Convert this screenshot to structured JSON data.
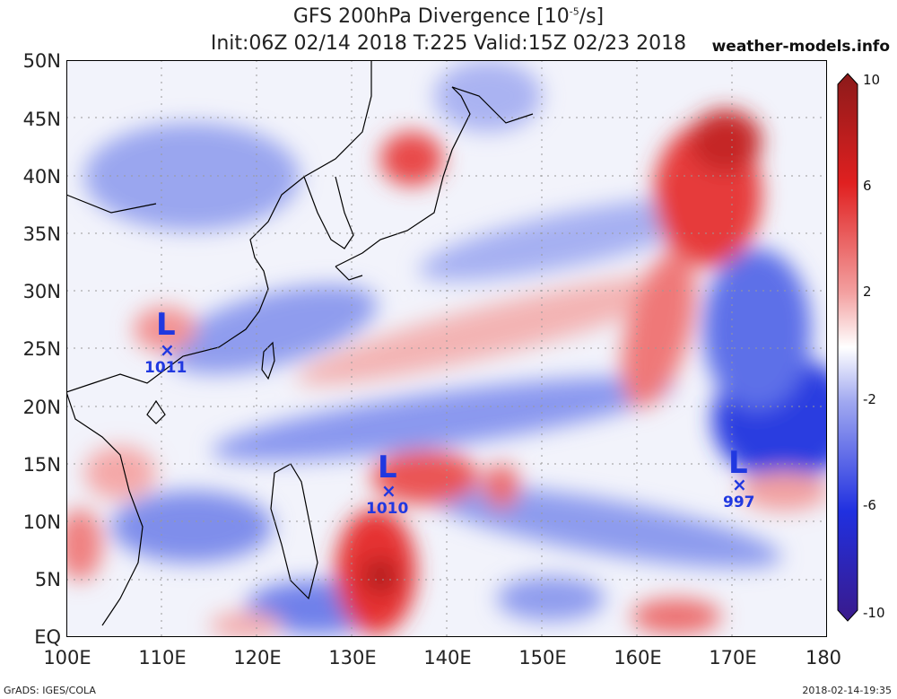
{
  "title": {
    "line1": "GFS 200hPa Divergence [10",
    "line1_exp": "-5",
    "line1_end": "/s]",
    "line2": "Init:06Z 02/14 2018 T:225 Valid:15Z 02/23 2018",
    "site": "weather-models.info"
  },
  "axes": {
    "y_ticks": [
      "50N",
      "45N",
      "40N",
      "35N",
      "30N",
      "25N",
      "20N",
      "15N",
      "10N",
      "5N",
      "EQ"
    ],
    "x_ticks": [
      "100E",
      "110E",
      "120E",
      "130E",
      "140E",
      "150E",
      "160E",
      "170E",
      "180"
    ]
  },
  "colorbar": {
    "labels": [
      "10",
      "6",
      "2",
      "-2",
      "-6",
      "-10"
    ],
    "colors": {
      "max": "#8b1a1a",
      "pos": "#e53030",
      "zero": "#ffffff",
      "neg": "#3040e0",
      "min": "#3a1a8b"
    }
  },
  "lows": [
    {
      "letter": "L",
      "value": "1011"
    },
    {
      "letter": "L",
      "value": "1010"
    },
    {
      "letter": "L",
      "value": "997"
    }
  ],
  "footer": {
    "left": "GrADS: IGES/COLA",
    "right": "2018-02-14-19:35"
  }
}
